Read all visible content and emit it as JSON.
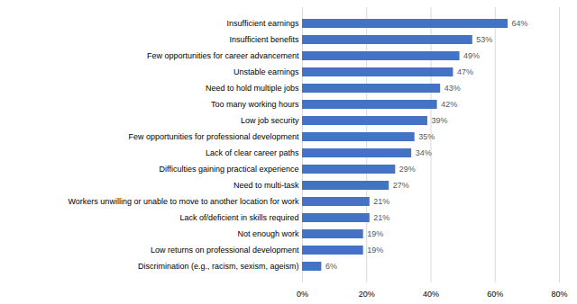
{
  "chart_data": {
    "type": "bar",
    "orientation": "horizontal",
    "categories": [
      "Discrimination (e.g., racism, sexism, ageism)",
      "Low returns on professional development",
      "Not enough work",
      "Lack of/deficient in skills required",
      "Workers unwilling or unable to move to another location for work",
      "Need to multi-task",
      "Difficulties gaining practical experience",
      "Lack of clear career paths",
      "Few opportunities for professional development",
      "Low job security",
      "Too many working hours",
      "Need to hold multiple jobs",
      "Unstable earnings",
      "Few opportunities for career advancement",
      "Insufficient benefits",
      "Insufficient earnings"
    ],
    "values": [
      6,
      19,
      19,
      21,
      21,
      27,
      29,
      34,
      35,
      39,
      42,
      43,
      47,
      49,
      53,
      64
    ],
    "value_labels": [
      "6%",
      "19%",
      "19%",
      "21%",
      "21%",
      "27%",
      "29%",
      "34%",
      "35%",
      "39%",
      "42%",
      "43%",
      "47%",
      "49%",
      "53%",
      "64%"
    ],
    "data_labels": true,
    "color": "#4472C4",
    "xlim": [
      0,
      80
    ],
    "xticks": [
      {
        "value": 0,
        "label": "0%"
      },
      {
        "value": 20,
        "label": "20%"
      },
      {
        "value": 40,
        "label": "40%"
      },
      {
        "value": 60,
        "label": "60%"
      },
      {
        "value": 80,
        "label": "80%"
      }
    ],
    "grid": true
  }
}
